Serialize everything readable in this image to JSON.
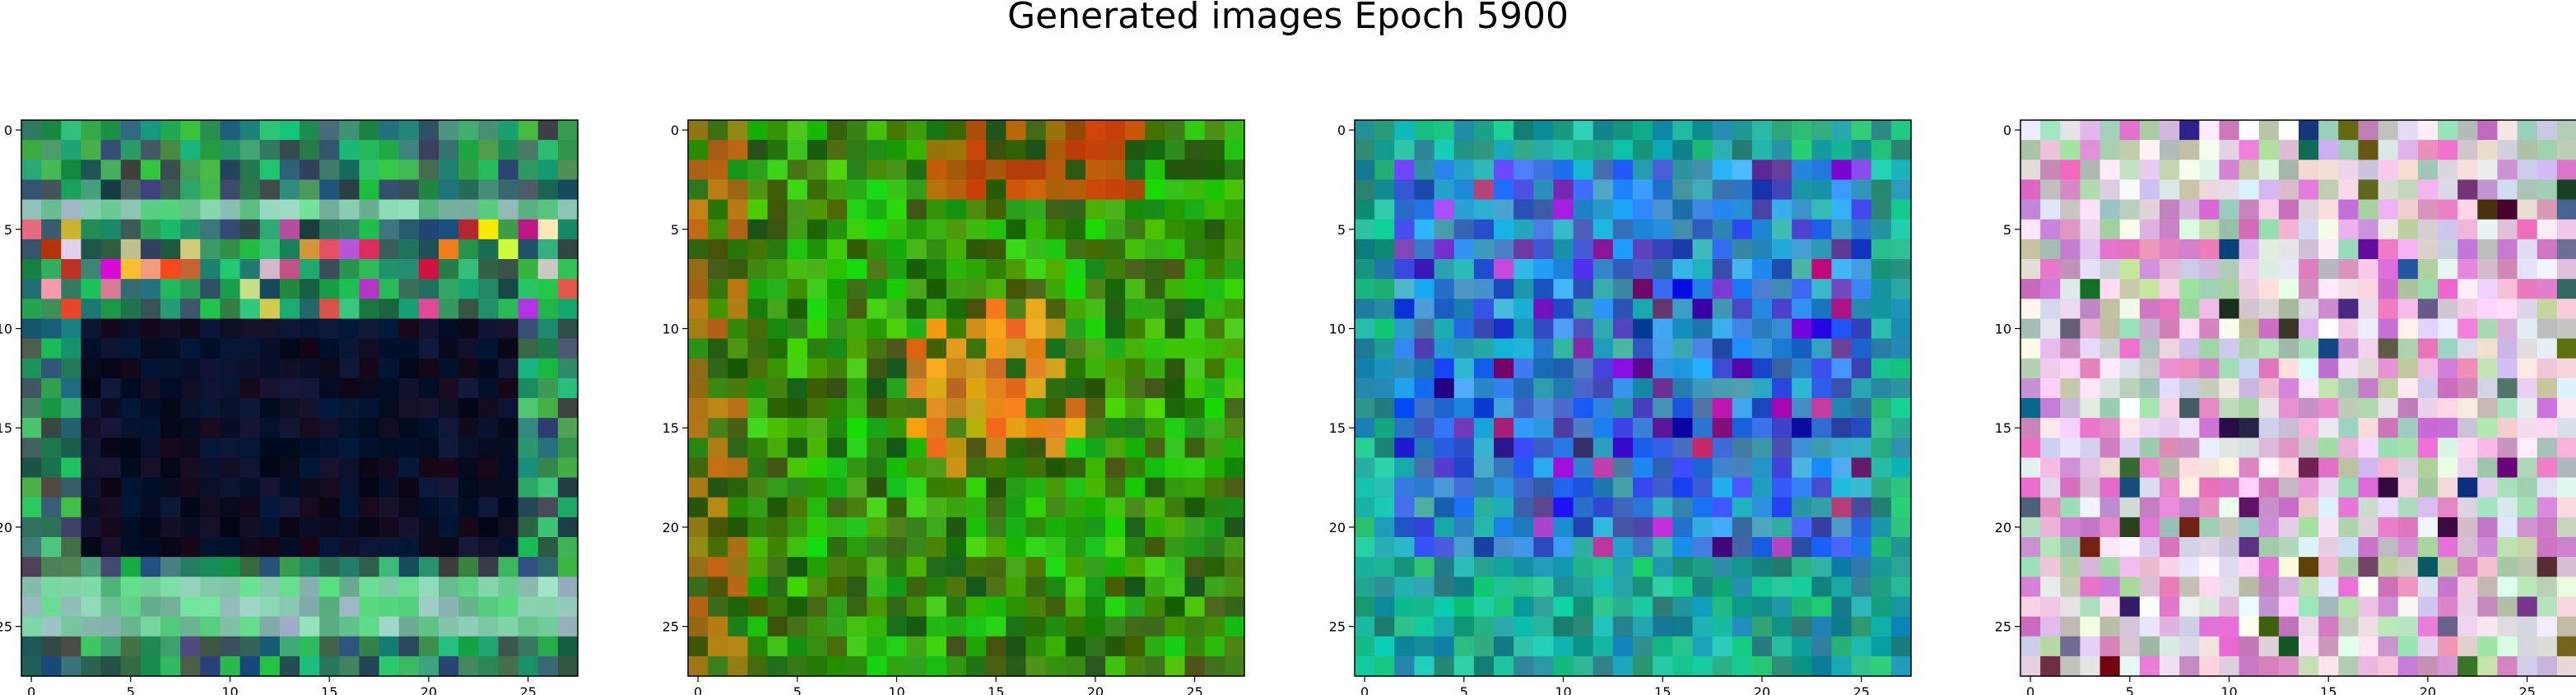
{
  "title": "Generated images Epoch 5900",
  "chart_data": {
    "type": "heatmap",
    "title": "Generated images Epoch 5900",
    "panels": [
      {
        "x_ticks": [
          0,
          5,
          10,
          15,
          20,
          25
        ],
        "y_ticks": [
          0,
          5,
          10,
          15,
          20,
          25
        ],
        "xlim": [
          -0.5,
          27.5
        ],
        "ylim": [
          27.5,
          -0.5
        ],
        "grid": false,
        "dominant_colors": [
          "#1e9a4a",
          "#0b0a12",
          "#2a1530",
          "#4ad07a"
        ]
      },
      {
        "x_ticks": [
          0,
          5,
          10,
          15,
          20,
          25
        ],
        "y_ticks": [
          0,
          5,
          10,
          15,
          20,
          25
        ],
        "xlim": [
          -0.5,
          27.5
        ],
        "ylim": [
          27.5,
          -0.5
        ],
        "grid": false,
        "dominant_colors": [
          "#2a8a10",
          "#0a3a08",
          "#c08a20",
          "#3cc020"
        ]
      },
      {
        "x_ticks": [
          0,
          5,
          10,
          15,
          20,
          25
        ],
        "y_ticks": [
          0,
          5,
          10,
          15,
          20,
          25
        ],
        "xlim": [
          -0.5,
          27.5
        ],
        "ylim": [
          27.5,
          -0.5
        ],
        "grid": false,
        "dominant_colors": [
          "#1a8a80",
          "#1a40d0",
          "#20c0c0",
          "#1060a0"
        ]
      },
      {
        "x_ticks": [
          0,
          5,
          10,
          15,
          20,
          25
        ],
        "y_ticks": [
          0,
          5,
          10,
          15,
          20,
          25
        ],
        "xlim": [
          -0.5,
          27.5
        ],
        "ylim": [
          27.5,
          -0.5
        ],
        "grid": false,
        "dominant_colors": [
          "#e0c8e0",
          "#f0e8f0",
          "#d880c8",
          "#b0d0b0"
        ]
      }
    ]
  }
}
